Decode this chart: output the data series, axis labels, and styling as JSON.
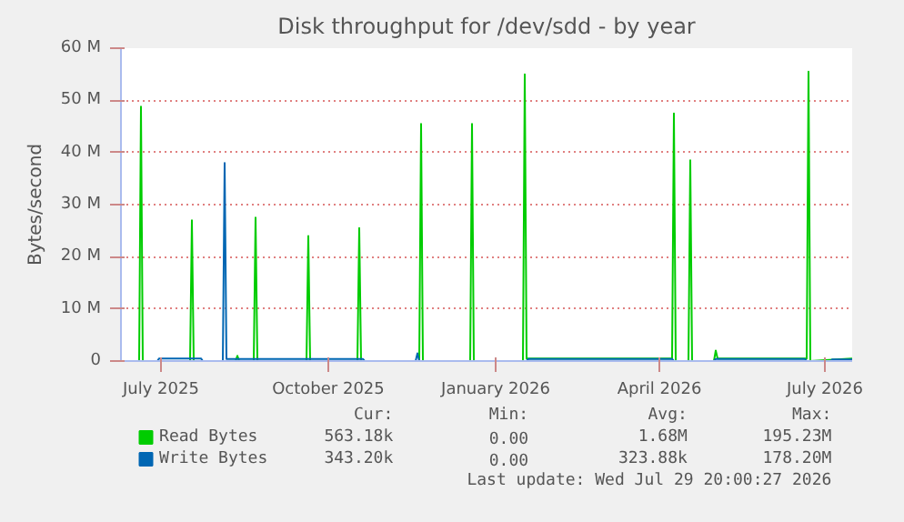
{
  "chart_data": {
    "type": "line",
    "title": "Disk throughput for /dev/sdd - by year",
    "ylabel": "Bytes/second",
    "xlim": [
      "2025-06-09",
      "2026-07-16"
    ],
    "xticks": [
      {
        "value": "2025-07-01",
        "label": "July 2025"
      },
      {
        "value": "2025-10-01",
        "label": "October 2025"
      },
      {
        "value": "2026-01-01",
        "label": "January 2026"
      },
      {
        "value": "2026-04-01",
        "label": "April 2026"
      },
      {
        "value": "2026-07-01",
        "label": "July 2026"
      }
    ],
    "ylim": [
      0,
      60
    ],
    "yticks": [
      {
        "value": 0,
        "label": "0"
      },
      {
        "value": 10,
        "label": "10 M"
      },
      {
        "value": 20,
        "label": "20 M"
      },
      {
        "value": 30,
        "label": "30 M"
      },
      {
        "value": 40,
        "label": "40 M"
      },
      {
        "value": 50,
        "label": "50 M"
      },
      {
        "value": 60,
        "label": "60 M"
      }
    ],
    "grid": true,
    "legend": "bottom",
    "series": [
      {
        "name": "Read Bytes",
        "color": "#00cc00",
        "x": [
          "2025-06-09",
          "2025-06-19",
          "2025-06-20",
          "2025-06-21",
          "2025-07-17",
          "2025-07-18",
          "2025-07-19",
          "2025-08-11",
          "2025-08-12",
          "2025-08-13",
          "2025-08-21",
          "2025-08-22",
          "2025-08-23",
          "2025-09-19",
          "2025-09-20",
          "2025-09-21",
          "2025-10-17",
          "2025-10-18",
          "2025-10-19",
          "2025-11-20",
          "2025-11-21",
          "2025-11-22",
          "2025-12-18",
          "2025-12-19",
          "2025-12-20",
          "2026-01-16",
          "2026-01-17",
          "2026-01-18",
          "2026-04-08",
          "2026-04-09",
          "2026-04-10",
          "2026-04-17",
          "2026-04-18",
          "2026-04-19",
          "2026-05-01",
          "2026-05-02",
          "2026-05-03",
          "2026-06-21",
          "2026-06-22",
          "2026-06-23",
          "2026-07-16"
        ],
        "values": [
          0,
          0,
          48.8,
          0,
          0,
          27,
          0,
          0,
          1,
          0,
          0,
          27.5,
          0,
          0,
          24,
          0,
          0,
          25.5,
          0,
          0,
          45.5,
          0,
          0,
          45.5,
          0,
          0,
          55,
          0.5,
          0.5,
          47.5,
          0,
          0,
          38.5,
          0,
          0,
          2,
          0.5,
          0.5,
          55.5,
          0,
          0.5
        ]
      },
      {
        "name": "Write Bytes",
        "color": "#0066b3",
        "x": [
          "2025-06-09",
          "2025-06-29",
          "2025-06-30",
          "2025-07-23",
          "2025-07-24",
          "2025-08-04",
          "2025-08-05",
          "2025-08-06",
          "2025-10-20",
          "2025-10-21",
          "2025-11-18",
          "2025-11-19",
          "2025-11-20",
          "2026-01-18",
          "2026-01-19",
          "2026-04-08",
          "2026-04-09",
          "2026-05-01",
          "2026-05-02",
          "2026-06-20",
          "2026-06-21",
          "2026-07-04",
          "2026-07-05",
          "2026-07-16"
        ],
        "values": [
          0,
          0,
          0.5,
          0.5,
          0,
          0,
          38,
          0.4,
          0.4,
          0,
          0,
          1.5,
          0,
          0,
          0.4,
          0.4,
          0,
          0,
          0.4,
          0.4,
          0,
          0,
          0.3,
          0.3
        ]
      }
    ],
    "annotations": [
      "Cur:",
      "Min:",
      "Avg:",
      "Max:",
      "563.18k",
      "0.00",
      "1.68M",
      "195.23M",
      "343.20k",
      "0.00",
      "323.88k",
      "178.20M",
      "Last update: Wed Jul 29 20:00:27 2026"
    ]
  }
}
